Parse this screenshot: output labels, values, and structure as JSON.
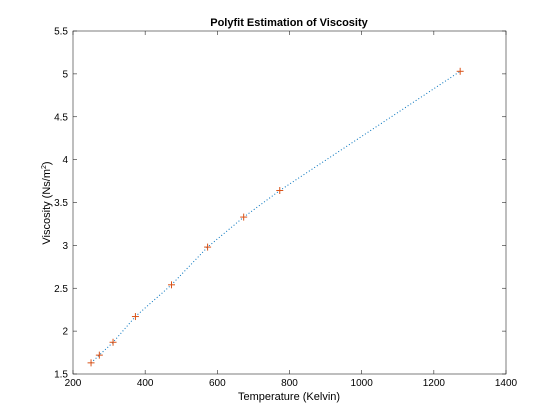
{
  "chart_data": {
    "type": "scatter",
    "title": "Polyfit Estimation of Viscosity",
    "xlabel": "Temperature (Kelvin)",
    "ylabel_main": "Viscosity (Ns/m",
    "ylabel_sup": "2",
    "ylabel_end": ")",
    "xlim": [
      200,
      1400
    ],
    "ylim": [
      1.5,
      5.5
    ],
    "x_ticks": [
      200,
      400,
      600,
      800,
      1000,
      1200,
      1400
    ],
    "x_tick_labels": [
      "200",
      "400",
      "600",
      "800",
      "1000",
      "1200",
      "1400"
    ],
    "y_ticks": [
      1.5,
      2,
      2.5,
      3,
      3.5,
      4,
      4.5,
      5,
      5.5
    ],
    "y_tick_labels": [
      "1.5",
      "2",
      "2.5",
      "3",
      "3.5",
      "4",
      "4.5",
      "5",
      "5.5"
    ],
    "grid": false,
    "series": [
      {
        "marker": "+",
        "color": "#D95319",
        "x": [
          250,
          273,
          311,
          373,
          473,
          573,
          673,
          773,
          1273
        ],
        "y": [
          1.63,
          1.72,
          1.87,
          2.17,
          2.54,
          2.98,
          3.33,
          3.64,
          5.03
        ]
      },
      {
        "style": "dotted-line",
        "color": "#0072BD",
        "x": [
          250,
          273,
          311,
          373,
          473,
          573,
          673,
          773,
          1273
        ],
        "y": [
          1.63,
          1.72,
          1.87,
          2.17,
          2.54,
          2.98,
          3.33,
          3.64,
          5.03
        ]
      }
    ]
  }
}
